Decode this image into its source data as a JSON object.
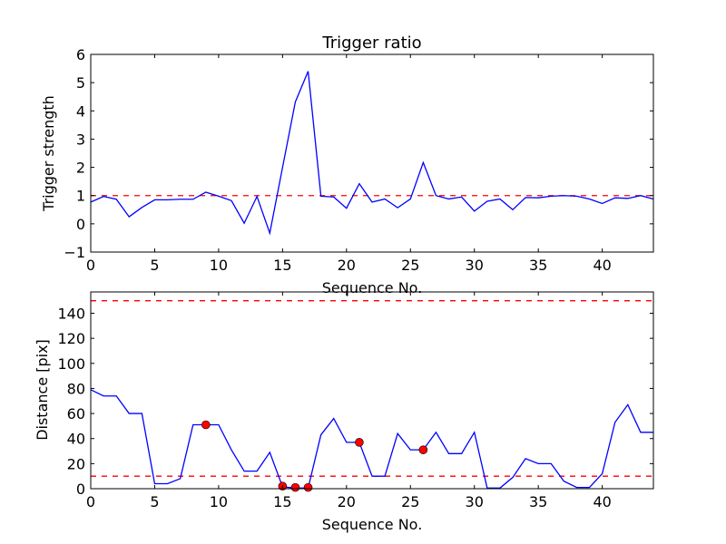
{
  "chart_data": [
    {
      "type": "line",
      "title": "Trigger ratio",
      "xlabel": "Sequence No.",
      "ylabel": "Trigger strength",
      "xlim": [
        0,
        44
      ],
      "ylim": [
        -1,
        6
      ],
      "xticks": [
        0,
        5,
        10,
        15,
        20,
        25,
        30,
        35,
        40
      ],
      "yticks": [
        -1,
        0,
        1,
        2,
        3,
        4,
        5,
        6
      ],
      "grid": false,
      "series": [
        {
          "name": "trigger strength",
          "color": "#0000ff",
          "x": [
            0,
            1,
            2,
            3,
            4,
            5,
            6,
            7,
            8,
            9,
            10,
            11,
            12,
            13,
            14,
            15,
            16,
            17,
            18,
            19,
            20,
            21,
            22,
            23,
            24,
            25,
            26,
            27,
            28,
            29,
            30,
            31,
            32,
            33,
            34,
            35,
            36,
            37,
            38,
            39,
            40,
            41,
            42,
            43,
            44
          ],
          "y": [
            0.77,
            0.97,
            0.87,
            0.25,
            0.58,
            0.85,
            0.85,
            0.87,
            0.87,
            1.12,
            0.98,
            0.82,
            0.02,
            0.97,
            -0.33,
            2.0,
            4.32,
            5.4,
            0.98,
            0.95,
            0.55,
            1.42,
            0.77,
            0.88,
            0.57,
            0.88,
            2.17,
            1.0,
            0.88,
            0.95,
            0.45,
            0.8,
            0.88,
            0.5,
            0.93,
            0.92,
            0.98,
            1.0,
            0.98,
            0.88,
            0.72,
            0.92,
            0.9,
            1.0,
            0.88
          ]
        }
      ],
      "hlines": [
        {
          "y": 1,
          "color": "#ff0000",
          "style": "dashed"
        }
      ]
    },
    {
      "type": "line",
      "title": "",
      "xlabel": "Sequence No.",
      "ylabel": "Distance [pix]",
      "xlim": [
        0,
        44
      ],
      "ylim": [
        0,
        157
      ],
      "xticks": [
        0,
        5,
        10,
        15,
        20,
        25,
        30,
        35,
        40
      ],
      "yticks": [
        0,
        20,
        40,
        60,
        80,
        100,
        120,
        140
      ],
      "grid": false,
      "series": [
        {
          "name": "distance",
          "color": "#0000ff",
          "x": [
            0,
            1,
            2,
            3,
            4,
            5,
            6,
            7,
            8,
            9,
            10,
            11,
            12,
            13,
            14,
            15,
            16,
            17,
            18,
            19,
            20,
            21,
            22,
            23,
            24,
            25,
            26,
            27,
            28,
            29,
            30,
            31,
            32,
            33,
            34,
            35,
            36,
            37,
            38,
            39,
            40,
            41,
            42,
            43,
            44
          ],
          "y": [
            79,
            74,
            74,
            60,
            60,
            4,
            4,
            8,
            51,
            51,
            51,
            31,
            14,
            14,
            29,
            1.5,
            0.5,
            0.5,
            43,
            56,
            37,
            37,
            10,
            10,
            44,
            31,
            31,
            45,
            28,
            28,
            45,
            0.5,
            0.5,
            9,
            24,
            20,
            20,
            6,
            1,
            1,
            12,
            53,
            67,
            45,
            45
          ]
        }
      ],
      "markers": {
        "color": "#ff0000",
        "x": [
          9,
          15,
          16,
          17,
          21,
          26
        ],
        "y": [
          51,
          2,
          1,
          1,
          37,
          31
        ]
      },
      "hlines": [
        {
          "y": 150,
          "color": "#ff0000",
          "style": "dashed"
        },
        {
          "y": 10,
          "color": "#ff0000",
          "style": "dashed"
        }
      ]
    }
  ]
}
